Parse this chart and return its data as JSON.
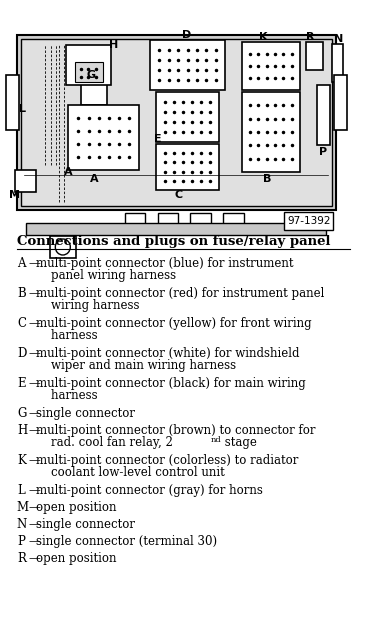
{
  "title": "Connections and plugs on fuse/relay panel",
  "legend_items": [
    {
      "letter": "A",
      "text": "multi-point connector (blue) for instrument\n    panel wiring harness"
    },
    {
      "letter": "B",
      "text": "multi-point connector (red) for instrument panel\n    wiring harness"
    },
    {
      "letter": "C",
      "text": "multi-point connector (yellow) for front wiring\n    harness"
    },
    {
      "letter": "D",
      "text": "multi-point connector (white) for windshield\n    wiper and main wiring harness"
    },
    {
      "letter": "E",
      "text": "multi-point connector (black) for main wiring\n    harness"
    },
    {
      "letter": "G",
      "text": "single connector"
    },
    {
      "letter": "H",
      "text": "multi-point connector (brown) to connector for\n    rad. cool fan relay, 2nd stage"
    },
    {
      "letter": "K",
      "text": "multi-point connector (colorless) to radiator\n    coolant low-level control unit"
    },
    {
      "letter": "L",
      "text": "multi-point connector (gray) for horns"
    },
    {
      "letter": "M",
      "text": "open position"
    },
    {
      "letter": "N",
      "text": "single connector"
    },
    {
      "letter": "P",
      "text": "single connector (terminal 30)"
    },
    {
      "letter": "R",
      "text": "open position"
    }
  ],
  "diagram_ref": "97-1392",
  "bg_color": "#ffffff",
  "text_color": "#000000",
  "diagram_bg": "#e8e8e8"
}
